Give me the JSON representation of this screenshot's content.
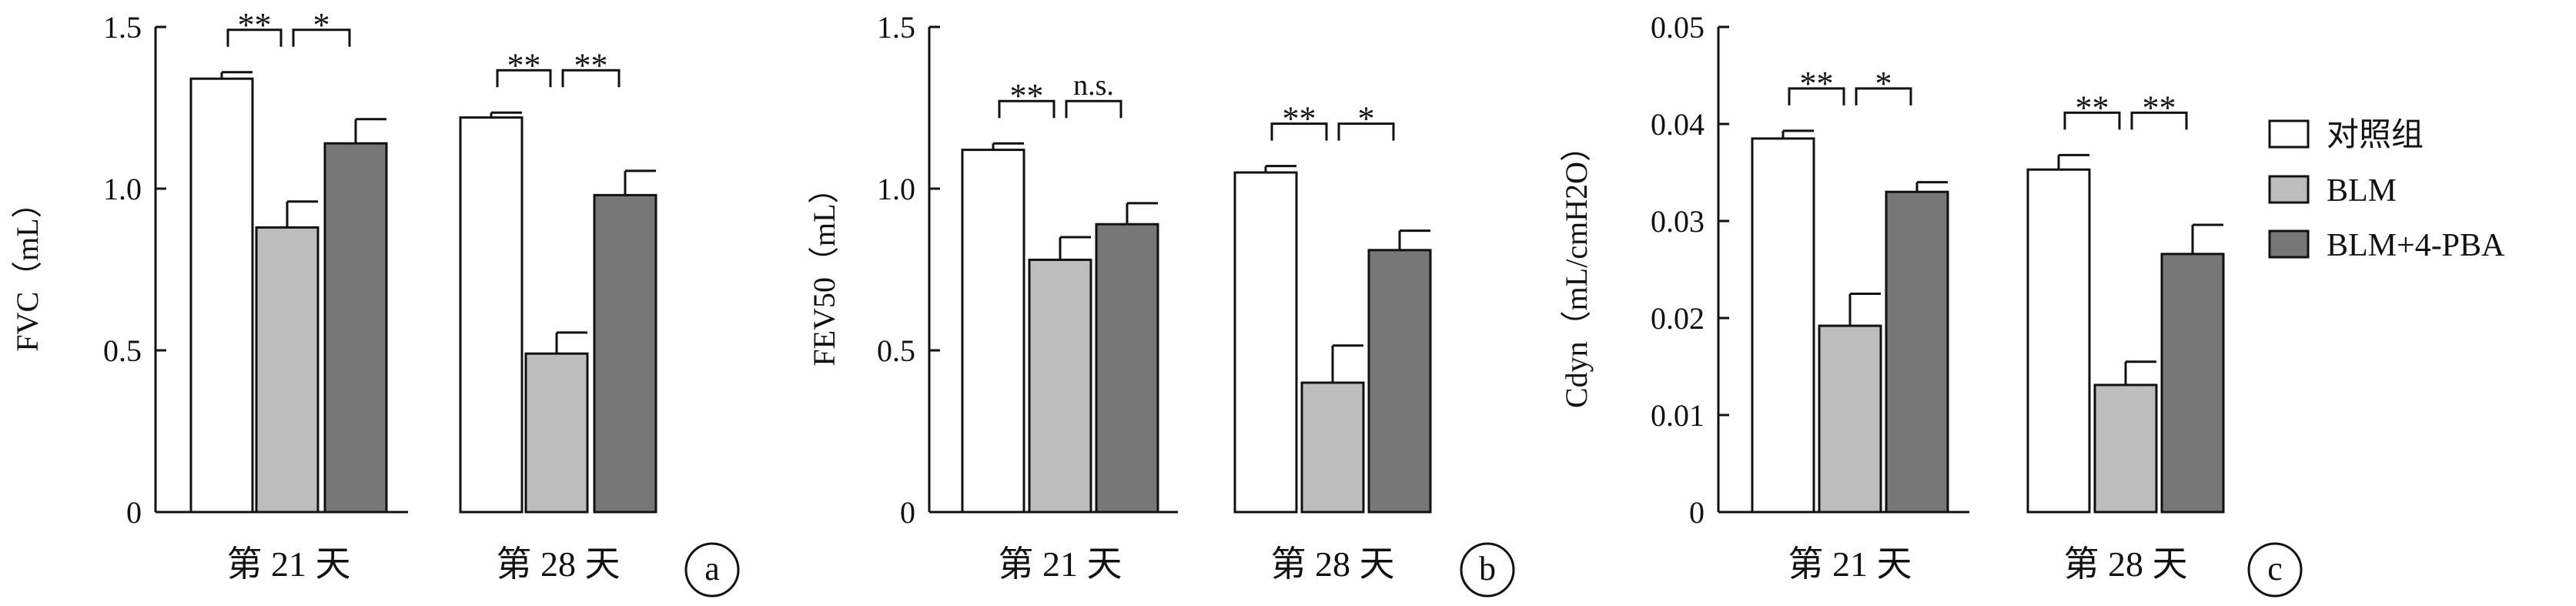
{
  "legend": [
    {
      "label": "对照组",
      "color": "#ffffff"
    },
    {
      "label": "BLM",
      "color": "#bdbdbd"
    },
    {
      "label": "BLM+4-PBA",
      "color": "#777777"
    }
  ],
  "chart_data": [
    {
      "type": "bar",
      "panel_label": "a",
      "ylabel": "FVC（mL）",
      "ylim": [
        0,
        1.5
      ],
      "yticks": [
        "0",
        "0.5",
        "1.0",
        "1.5"
      ],
      "categories": [
        "第 21 天",
        "第 28 天"
      ],
      "series": [
        {
          "name": "对照组",
          "values": [
            1.34,
            1.22
          ],
          "errors": [
            0.02,
            0.015
          ]
        },
        {
          "name": "BLM",
          "values": [
            0.88,
            0.49
          ],
          "errors": [
            0.08,
            0.065
          ]
        },
        {
          "name": "BLM+4-PBA",
          "values": [
            1.14,
            0.98
          ],
          "errors": [
            0.075,
            0.075
          ]
        }
      ],
      "significance": [
        {
          "category": 0,
          "pair": [
            0,
            1
          ],
          "label": "**"
        },
        {
          "category": 0,
          "pair": [
            1,
            2
          ],
          "label": "*"
        },
        {
          "category": 1,
          "pair": [
            0,
            1
          ],
          "label": "**"
        },
        {
          "category": 1,
          "pair": [
            1,
            2
          ],
          "label": "**"
        }
      ]
    },
    {
      "type": "bar",
      "panel_label": "b",
      "ylabel": "FEV50（mL）",
      "ylim": [
        0,
        1.5
      ],
      "yticks": [
        "0",
        "0.5",
        "1.0",
        "1.5"
      ],
      "categories": [
        "第 21 天",
        "第 28 天"
      ],
      "series": [
        {
          "name": "对照组",
          "values": [
            1.12,
            1.05
          ],
          "errors": [
            0.02,
            0.02
          ]
        },
        {
          "name": "BLM",
          "values": [
            0.78,
            0.4
          ],
          "errors": [
            0.07,
            0.115
          ]
        },
        {
          "name": "BLM+4-PBA",
          "values": [
            0.89,
            0.81
          ],
          "errors": [
            0.065,
            0.06
          ]
        }
      ],
      "significance": [
        {
          "category": 0,
          "pair": [
            0,
            1
          ],
          "label": "**"
        },
        {
          "category": 0,
          "pair": [
            1,
            2
          ],
          "label": "n.s."
        },
        {
          "category": 1,
          "pair": [
            0,
            1
          ],
          "label": "**"
        },
        {
          "category": 1,
          "pair": [
            1,
            2
          ],
          "label": "*"
        }
      ]
    },
    {
      "type": "bar",
      "panel_label": "c",
      "ylabel": "Cdyn（mL/cmH2O）",
      "ylim": [
        0,
        0.05
      ],
      "yticks": [
        "0",
        "0.01",
        "0.02",
        "0.03",
        "0.04",
        "0.05"
      ],
      "categories": [
        "第 21 天",
        "第 28 天"
      ],
      "series": [
        {
          "name": "对照组",
          "values": [
            0.0385,
            0.0353
          ],
          "errors": [
            0.0008,
            0.0015
          ]
        },
        {
          "name": "BLM",
          "values": [
            0.0192,
            0.0131
          ],
          "errors": [
            0.0033,
            0.0024
          ]
        },
        {
          "name": "BLM+4-PBA",
          "values": [
            0.033,
            0.0266
          ],
          "errors": [
            0.001,
            0.003
          ]
        }
      ],
      "significance": [
        {
          "category": 0,
          "pair": [
            0,
            1
          ],
          "label": "**"
        },
        {
          "category": 0,
          "pair": [
            1,
            2
          ],
          "label": "*"
        },
        {
          "category": 1,
          "pair": [
            0,
            1
          ],
          "label": "**"
        },
        {
          "category": 1,
          "pair": [
            1,
            2
          ],
          "label": "**"
        }
      ]
    }
  ]
}
